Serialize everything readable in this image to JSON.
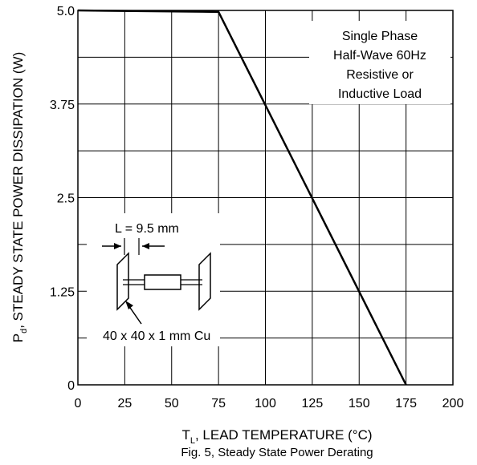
{
  "chart_data": {
    "type": "line",
    "caption": "Fig. 5, Steady State Power Derating",
    "xlabel": {
      "symbol": "T",
      "subscript": "L",
      "text": ", LEAD TEMPERATURE (°C)"
    },
    "ylabel": {
      "symbol": "P",
      "subscript": "d",
      "text": ", STEADY STATE POWER DISSIPATION (W)"
    },
    "x_ticks": [
      0,
      25,
      50,
      75,
      100,
      125,
      150,
      175,
      200
    ],
    "y_ticks": [
      {
        "value": 0,
        "label": "0"
      },
      {
        "value": 1.25,
        "label": "1.25"
      },
      {
        "value": 2.5,
        "label": "2.5"
      },
      {
        "value": 3.75,
        "label": "3.75"
      },
      {
        "value": 5.0,
        "label": "5.0"
      }
    ],
    "xlim": [
      0,
      200
    ],
    "ylim": [
      0,
      5.0
    ],
    "grid": true,
    "series": [
      {
        "x": [
          0,
          75,
          175
        ],
        "y": [
          5.0,
          4.98,
          0
        ],
        "color": "#000000"
      }
    ],
    "annotation_box": [
      "Single Phase",
      "Half-Wave 60Hz",
      "Resistive or",
      "Inductive Load"
    ],
    "inset": {
      "dimension_label": "L = 9.5 mm",
      "copper_label": "40 x 40 x 1 mm Cu"
    }
  }
}
